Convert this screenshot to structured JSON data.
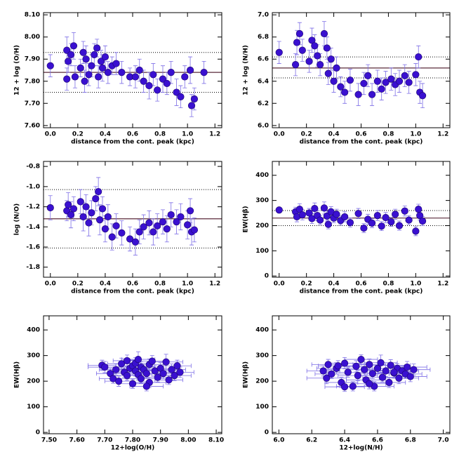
{
  "chart_data": [
    {
      "type": "scatter",
      "xlabel": "distance from the cont. peak (kpc)",
      "ylabel": "12 + log (O/H)",
      "xlim": [
        -0.05,
        1.25
      ],
      "xticks": [
        {
          "value": 0,
          "label": "0.0"
        },
        0.2,
        0.4,
        0.6,
        0.8,
        {
          "value": 1,
          "label": "1.0"
        },
        1.2
      ],
      "ylim": [
        7.59,
        8.11
      ],
      "yticks": [
        {
          "value": 7.6,
          "label": "7.60"
        },
        {
          "value": 7.7,
          "label": "7.70"
        },
        {
          "value": 7.8,
          "label": "7.80"
        },
        {
          "value": 7.9,
          "label": "7.90"
        },
        {
          "value": 8,
          "label": "8.00"
        },
        {
          "value": 8.1,
          "label": "8.10"
        }
      ],
      "color": "#3a10d0",
      "error_color": "#7d6ee6",
      "reference_lines": [
        {
          "value": 7.84,
          "style": "solid"
        },
        {
          "value": 7.93,
          "style": "dotted"
        },
        {
          "value": 7.75,
          "style": "dotted"
        }
      ],
      "x": [
        0.0,
        0.12,
        0.12,
        0.13,
        0.15,
        0.17,
        0.18,
        0.22,
        0.24,
        0.25,
        0.26,
        0.28,
        0.3,
        0.32,
        0.34,
        0.35,
        0.37,
        0.38,
        0.4,
        0.42,
        0.45,
        0.48,
        0.52,
        0.58,
        0.62,
        0.65,
        0.68,
        0.72,
        0.75,
        0.78,
        0.82,
        0.85,
        0.88,
        0.92,
        0.95,
        0.98,
        1.02,
        1.03,
        1.05,
        1.12
      ],
      "values": [
        7.87,
        7.81,
        7.94,
        7.89,
        7.92,
        7.96,
        7.82,
        7.86,
        7.93,
        7.8,
        7.9,
        7.83,
        7.87,
        7.92,
        7.95,
        7.82,
        7.89,
        7.86,
        7.91,
        7.84,
        7.87,
        7.88,
        7.84,
        7.82,
        7.82,
        7.85,
        7.8,
        7.78,
        7.83,
        7.76,
        7.81,
        7.79,
        7.84,
        7.75,
        7.73,
        7.82,
        7.85,
        7.69,
        7.72,
        7.84
      ],
      "yerr": [
        0.05,
        0.05,
        0.06,
        0.05,
        0.05,
        0.06,
        0.05,
        0.04,
        0.05,
        0.05,
        0.06,
        0.05,
        0.05,
        0.05,
        0.04,
        0.05,
        0.05,
        0.06,
        0.05,
        0.05,
        0.04,
        0.05,
        0.05,
        0.04,
        0.05,
        0.05,
        0.05,
        0.06,
        0.05,
        0.05,
        0.06,
        0.05,
        0.05,
        0.06,
        0.05,
        0.05,
        0.06,
        0.05,
        0.05,
        0.05
      ]
    },
    {
      "type": "scatter",
      "xlabel": "distance from the cont. peak (kpc)",
      "ylabel": "12 + log (N/H)",
      "xlim": [
        -0.05,
        1.25
      ],
      "xticks": [
        {
          "value": 0,
          "label": "0.0"
        },
        0.2,
        0.4,
        0.6,
        0.8,
        {
          "value": 1,
          "label": "1.0"
        },
        1.2
      ],
      "ylim": [
        5.98,
        7.02
      ],
      "yticks": [
        {
          "value": 6,
          "label": "6.0"
        },
        6.2,
        6.4,
        6.6,
        6.8,
        {
          "value": 7,
          "label": "7.0"
        }
      ],
      "color": "#3a10d0",
      "error_color": "#7d6ee6",
      "reference_lines": [
        {
          "value": 6.52,
          "style": "solid"
        },
        {
          "value": 6.62,
          "style": "dotted"
        },
        {
          "value": 6.43,
          "style": "dotted"
        }
      ],
      "x": [
        0.0,
        0.12,
        0.13,
        0.15,
        0.17,
        0.22,
        0.24,
        0.26,
        0.28,
        0.3,
        0.33,
        0.35,
        0.36,
        0.38,
        0.4,
        0.42,
        0.45,
        0.48,
        0.52,
        0.58,
        0.62,
        0.65,
        0.68,
        0.72,
        0.75,
        0.78,
        0.82,
        0.85,
        0.88,
        0.92,
        0.95,
        1.0,
        1.02,
        1.03,
        1.05
      ],
      "values": [
        6.66,
        6.55,
        6.75,
        6.83,
        6.68,
        6.58,
        6.77,
        6.72,
        6.63,
        6.55,
        6.83,
        6.7,
        6.47,
        6.6,
        6.4,
        6.52,
        6.35,
        6.3,
        6.41,
        6.28,
        6.38,
        6.45,
        6.28,
        6.4,
        6.33,
        6.39,
        6.42,
        6.37,
        6.4,
        6.45,
        6.39,
        6.46,
        6.62,
        6.3,
        6.27
      ],
      "yerr": [
        0.1,
        0.1,
        0.11,
        0.1,
        0.1,
        0.1,
        0.11,
        0.1,
        0.1,
        0.1,
        0.11,
        0.1,
        0.1,
        0.1,
        0.1,
        0.1,
        0.09,
        0.1,
        0.1,
        0.1,
        0.1,
        0.1,
        0.1,
        0.1,
        0.1,
        0.1,
        0.1,
        0.1,
        0.1,
        0.1,
        0.1,
        0.1,
        0.1,
        0.1,
        0.11
      ]
    },
    {
      "type": "scatter",
      "xlabel": "distance from the cont. peak (kpc)",
      "ylabel": "log (N/O)",
      "xlim": [
        -0.05,
        1.25
      ],
      "xticks": [
        {
          "value": 0,
          "label": "0.0"
        },
        0.2,
        0.4,
        0.6,
        0.8,
        {
          "value": 1,
          "label": "1.0"
        },
        1.2
      ],
      "ylim": [
        -1.9,
        -0.75
      ],
      "yticks": [
        -1.8,
        -1.6,
        -1.4,
        -1.2,
        {
          "value": -1,
          "label": "-1.0"
        },
        -0.8
      ],
      "color": "#3a10d0",
      "error_color": "#7d6ee6",
      "reference_lines": [
        {
          "value": -1.32,
          "style": "solid"
        },
        {
          "value": -1.03,
          "style": "dotted"
        },
        {
          "value": -1.61,
          "style": "dotted"
        }
      ],
      "x": [
        0.0,
        0.12,
        0.13,
        0.15,
        0.17,
        0.22,
        0.24,
        0.26,
        0.28,
        0.3,
        0.33,
        0.35,
        0.36,
        0.38,
        0.4,
        0.42,
        0.45,
        0.48,
        0.52,
        0.58,
        0.62,
        0.65,
        0.68,
        0.72,
        0.75,
        0.78,
        0.82,
        0.85,
        0.88,
        0.92,
        0.95,
        1.0,
        1.02,
        1.03,
        1.05
      ],
      "values": [
        -1.21,
        -1.24,
        -1.18,
        -1.28,
        -1.22,
        -1.15,
        -1.3,
        -1.2,
        -1.36,
        -1.26,
        -1.12,
        -1.05,
        -1.33,
        -1.22,
        -1.42,
        -1.3,
        -1.5,
        -1.39,
        -1.46,
        -1.52,
        -1.55,
        -1.45,
        -1.4,
        -1.36,
        -1.45,
        -1.39,
        -1.35,
        -1.42,
        -1.28,
        -1.35,
        -1.3,
        -1.38,
        -1.24,
        -1.45,
        -1.43
      ],
      "yerr": [
        0.12,
        0.1,
        0.12,
        0.13,
        0.12,
        0.12,
        0.14,
        0.12,
        0.13,
        0.12,
        0.12,
        0.14,
        0.15,
        0.12,
        0.13,
        0.12,
        0.13,
        0.12,
        0.12,
        0.12,
        0.13,
        0.12,
        0.12,
        0.12,
        0.13,
        0.12,
        0.12,
        0.13,
        0.12,
        0.12,
        0.13,
        0.14,
        0.12,
        0.13,
        0.12
      ]
    },
    {
      "type": "scatter",
      "xlabel": "distance from the cont. peak (kpc)",
      "ylabel": "EW(Hβ)",
      "xlim": [
        -0.05,
        1.25
      ],
      "xticks": [
        {
          "value": 0,
          "label": "0.0"
        },
        0.2,
        0.4,
        0.6,
        0.8,
        {
          "value": 1,
          "label": "1.0"
        },
        1.2
      ],
      "ylim": [
        -5,
        455
      ],
      "yticks": [
        0,
        100,
        200,
        300,
        400
      ],
      "color": "#3a10d0",
      "error_color": "#7d6ee6",
      "reference_lines": [
        {
          "value": 230,
          "style": "solid"
        },
        {
          "value": 260,
          "style": "dotted"
        },
        {
          "value": 200,
          "style": "dotted"
        }
      ],
      "x": [
        0.0,
        0.12,
        0.13,
        0.15,
        0.17,
        0.22,
        0.24,
        0.26,
        0.28,
        0.3,
        0.33,
        0.35,
        0.36,
        0.38,
        0.4,
        0.42,
        0.45,
        0.48,
        0.52,
        0.58,
        0.62,
        0.65,
        0.68,
        0.72,
        0.75,
        0.78,
        0.82,
        0.85,
        0.88,
        0.92,
        0.95,
        1.0,
        1.02,
        1.03,
        1.05
      ],
      "values": [
        262,
        255,
        235,
        265,
        243,
        250,
        228,
        268,
        240,
        222,
        270,
        238,
        205,
        255,
        230,
        245,
        220,
        235,
        212,
        248,
        190,
        225,
        210,
        240,
        198,
        232,
        215,
        245,
        200,
        258,
        222,
        178,
        265,
        240,
        218
      ],
      "yerr": [
        8,
        18,
        20,
        22,
        20,
        18,
        20,
        22,
        20,
        18,
        24,
        20,
        18,
        20,
        18,
        20,
        18,
        20,
        18,
        20,
        18,
        20,
        18,
        20,
        18,
        20,
        18,
        20,
        18,
        20,
        18,
        18,
        20,
        18,
        18
      ]
    },
    {
      "type": "scatter",
      "xlabel": "12+log(O/H)",
      "ylabel": "EW(Hβ)",
      "xlim": [
        7.48,
        8.12
      ],
      "xticks": [
        {
          "value": 7.5,
          "label": "7.50"
        },
        {
          "value": 7.6,
          "label": "7.60"
        },
        {
          "value": 7.7,
          "label": "7.70"
        },
        {
          "value": 7.8,
          "label": "7.80"
        },
        {
          "value": 7.9,
          "label": "7.90"
        },
        {
          "value": 8,
          "label": "8.00"
        },
        {
          "value": 8.1,
          "label": "8.10"
        }
      ],
      "ylim": [
        -5,
        455
      ],
      "yticks": [
        0,
        100,
        200,
        300,
        400
      ],
      "color": "#3a10d0",
      "error_color": "#7d6ee6",
      "x": [
        7.69,
        7.7,
        7.72,
        7.73,
        7.74,
        7.75,
        7.76,
        7.77,
        7.78,
        7.78,
        7.79,
        7.8,
        7.8,
        7.81,
        7.81,
        7.82,
        7.82,
        7.83,
        7.83,
        7.84,
        7.85,
        7.86,
        7.86,
        7.87,
        7.88,
        7.89,
        7.9,
        7.91,
        7.92,
        7.93,
        7.94,
        7.95,
        7.96,
        7.97,
        7.85
      ],
      "values": [
        262,
        255,
        230,
        210,
        245,
        200,
        268,
        235,
        222,
        280,
        250,
        190,
        260,
        240,
        270,
        225,
        285,
        210,
        255,
        245,
        230,
        265,
        195,
        278,
        240,
        215,
        250,
        230,
        275,
        205,
        245,
        222,
        260,
        235,
        180
      ],
      "xerr": [
        0.05,
        0.06,
        0.05,
        0.05,
        0.06,
        0.05,
        0.05,
        0.06,
        0.05,
        0.05,
        0.06,
        0.05,
        0.05,
        0.06,
        0.05,
        0.05,
        0.06,
        0.05,
        0.05,
        0.06,
        0.05,
        0.05,
        0.06,
        0.05,
        0.05,
        0.06,
        0.05,
        0.05,
        0.06,
        0.05,
        0.05,
        0.06,
        0.05,
        0.05,
        0.06
      ],
      "yerr": [
        20,
        22,
        20,
        18,
        22,
        20,
        22,
        20,
        18,
        22,
        20,
        18,
        22,
        20,
        22,
        20,
        30,
        18,
        22,
        20,
        18,
        22,
        20,
        22,
        20,
        18,
        22,
        20,
        30,
        18,
        22,
        20,
        22,
        20,
        18
      ]
    },
    {
      "type": "scatter",
      "xlabel": "12+log(N/H)",
      "ylabel": "EW(Hβ)",
      "xlim": [
        5.96,
        7.04
      ],
      "xticks": [
        {
          "value": 6,
          "label": "6.0"
        },
        6.2,
        6.4,
        6.6,
        6.8,
        {
          "value": 7,
          "label": "7.0"
        }
      ],
      "ylim": [
        -5,
        455
      ],
      "yticks": [
        0,
        100,
        200,
        300,
        400
      ],
      "color": "#3a10d0",
      "error_color": "#7d6ee6",
      "x": [
        6.27,
        6.29,
        6.3,
        6.32,
        6.35,
        6.38,
        6.4,
        6.42,
        6.45,
        6.47,
        6.48,
        6.5,
        6.52,
        6.53,
        6.55,
        6.57,
        6.58,
        6.6,
        6.62,
        6.63,
        6.65,
        6.67,
        6.68,
        6.7,
        6.72,
        6.73,
        6.75,
        6.77,
        6.78,
        6.8,
        6.82,
        6.4,
        6.55,
        6.7,
        6.36
      ],
      "values": [
        240,
        212,
        265,
        228,
        250,
        195,
        270,
        235,
        180,
        258,
        222,
        285,
        245,
        205,
        265,
        230,
        180,
        250,
        272,
        215,
        240,
        195,
        262,
        232,
        250,
        212,
        240,
        228,
        255,
        218,
        245,
        178,
        190,
        235,
        260
      ],
      "xerr": [
        0.1,
        0.12,
        0.1,
        0.1,
        0.12,
        0.1,
        0.1,
        0.12,
        0.1,
        0.1,
        0.12,
        0.1,
        0.1,
        0.12,
        0.1,
        0.1,
        0.12,
        0.1,
        0.1,
        0.12,
        0.1,
        0.1,
        0.12,
        0.1,
        0.1,
        0.12,
        0.1,
        0.1,
        0.12,
        0.1,
        0.1,
        0.12,
        0.1,
        0.1,
        0.12
      ],
      "yerr": [
        20,
        22,
        20,
        18,
        22,
        20,
        22,
        20,
        18,
        22,
        20,
        18,
        22,
        20,
        22,
        20,
        18,
        22,
        30,
        18,
        22,
        20,
        22,
        20,
        18,
        22,
        20,
        18,
        22,
        20,
        22,
        18,
        20,
        22,
        20
      ]
    }
  ]
}
